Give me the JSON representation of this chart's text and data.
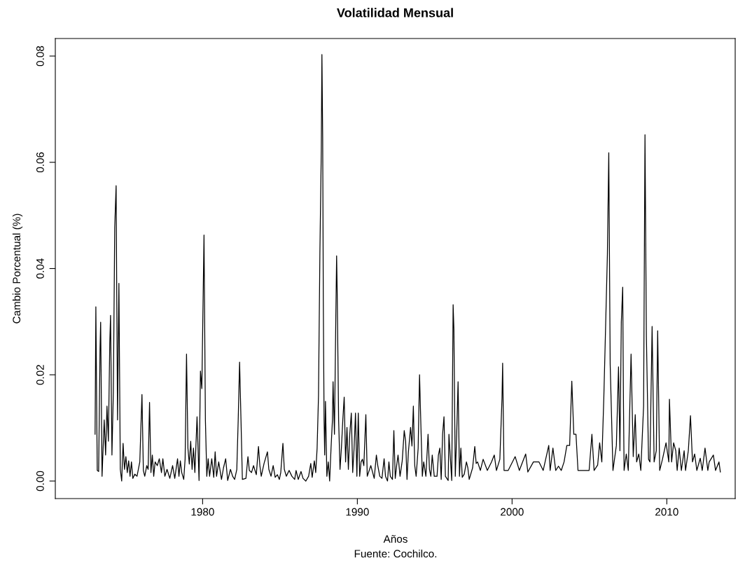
{
  "chart_data": {
    "type": "line",
    "title": "Volatilidad Mensual",
    "xlabel": "Años",
    "ylabel": "Cambio Porcentual (%)",
    "annotations": [
      "Fuente: Cochilco."
    ],
    "x": [
      1973.05,
      1973.1,
      1973.19,
      1973.28,
      1973.37,
      1973.41,
      1973.5,
      1973.64,
      1973.73,
      1973.82,
      1973.91,
      1974.0,
      1974.05,
      1974.14,
      1974.23,
      1974.32,
      1974.41,
      1974.45,
      1974.5,
      1974.59,
      1974.68,
      1974.77,
      1974.86,
      1974.95,
      1975.04,
      1975.13,
      1975.22,
      1975.31,
      1975.4,
      1975.49,
      1975.62,
      1975.76,
      1975.94,
      1976.08,
      1976.17,
      1976.26,
      1976.39,
      1976.48,
      1976.57,
      1976.66,
      1976.75,
      1976.84,
      1976.93,
      1977.07,
      1977.2,
      1977.34,
      1977.43,
      1977.56,
      1977.7,
      1977.88,
      1978.06,
      1978.2,
      1978.38,
      1978.47,
      1978.56,
      1978.65,
      1978.78,
      1978.87,
      1978.96,
      1979.05,
      1979.14,
      1979.23,
      1979.32,
      1979.41,
      1979.5,
      1979.64,
      1979.77,
      1979.86,
      1979.95,
      1980.09,
      1980.18,
      1980.27,
      1980.36,
      1980.45,
      1980.59,
      1980.72,
      1980.81,
      1980.9,
      1981.04,
      1981.22,
      1981.35,
      1981.49,
      1981.62,
      1981.8,
      1981.94,
      1982.07,
      1982.21,
      1982.3,
      1982.39,
      1982.48,
      1982.57,
      1982.8,
      1982.93,
      1983.02,
      1983.16,
      1983.29,
      1983.47,
      1983.61,
      1983.7,
      1983.79,
      1983.97,
      1984.19,
      1984.28,
      1984.42,
      1984.56,
      1984.69,
      1984.83,
      1984.96,
      1985.05,
      1985.19,
      1985.28,
      1985.41,
      1985.59,
      1985.77,
      1985.95,
      1986.04,
      1986.18,
      1986.36,
      1986.49,
      1986.67,
      1986.85,
      1986.99,
      1987.08,
      1987.22,
      1987.31,
      1987.4,
      1987.49,
      1987.58,
      1987.67,
      1987.71,
      1987.76,
      1987.8,
      1987.85,
      1987.89,
      1987.94,
      1988.03,
      1988.12,
      1988.21,
      1988.3,
      1988.39,
      1988.43,
      1988.52,
      1988.61,
      1988.66,
      1988.7,
      1988.79,
      1988.88,
      1988.97,
      1989.06,
      1989.15,
      1989.24,
      1989.33,
      1989.42,
      1989.51,
      1989.61,
      1989.7,
      1989.79,
      1989.88,
      1989.97,
      1990.06,
      1990.15,
      1990.24,
      1990.33,
      1990.42,
      1990.55,
      1990.64,
      1990.87,
      1991.09,
      1991.23,
      1991.32,
      1991.45,
      1991.59,
      1991.73,
      1991.82,
      1991.95,
      1992.04,
      1992.13,
      1992.27,
      1992.36,
      1992.45,
      1992.54,
      1992.63,
      1992.76,
      1992.9,
      1993.03,
      1993.12,
      1993.21,
      1993.3,
      1993.44,
      1993.53,
      1993.62,
      1993.71,
      1993.8,
      1993.93,
      1994.02,
      1994.11,
      1994.2,
      1994.29,
      1994.43,
      1994.57,
      1994.66,
      1994.75,
      1994.84,
      1994.97,
      1995.15,
      1995.24,
      1995.33,
      1995.42,
      1995.51,
      1995.6,
      1995.69,
      1995.87,
      1995.92,
      1996.1,
      1996.19,
      1996.24,
      1996.33,
      1996.42,
      1996.51,
      1996.6,
      1996.69,
      1996.78,
      1996.91,
      1997.05,
      1997.14,
      1997.23,
      1997.45,
      1997.59,
      1997.68,
      1997.77,
      1997.95,
      1998.13,
      1998.4,
      1998.67,
      1998.85,
      1998.99,
      1999.21,
      1999.35,
      1999.39,
      1999.48,
      1999.75,
      2000.2,
      2000.47,
      2000.88,
      2001.02,
      2001.38,
      2001.74,
      2002.01,
      2002.37,
      2002.46,
      2002.64,
      2002.82,
      2003.0,
      2003.18,
      2003.36,
      2003.54,
      2003.72,
      2003.86,
      2003.99,
      2004.13,
      2004.26,
      2004.62,
      2004.98,
      2005.16,
      2005.3,
      2005.53,
      2005.66,
      2005.8,
      2005.93,
      2006.16,
      2006.25,
      2006.34,
      2006.52,
      2006.74,
      2006.88,
      2006.97,
      2007.06,
      2007.15,
      2007.2,
      2007.24,
      2007.38,
      2007.51,
      2007.69,
      2007.83,
      2007.96,
      2008.05,
      2008.19,
      2008.32,
      2008.5,
      2008.59,
      2008.68,
      2008.82,
      2008.91,
      2009.05,
      2009.18,
      2009.32,
      2009.41,
      2009.54,
      2009.72,
      2009.95,
      2010.13,
      2010.17,
      2010.31,
      2010.44,
      2010.58,
      2010.67,
      2010.8,
      2010.94,
      2011.12,
      2011.21,
      2011.39,
      2011.53,
      2011.66,
      2011.8,
      2011.94,
      2012.16,
      2012.29,
      2012.47,
      2012.65,
      2012.74,
      2013.01,
      2013.15,
      2013.37,
      2013.46
    ],
    "series": [
      {
        "color": "#000000",
        "values": [
          0.0088,
          0.0328,
          0.002,
          0.0018,
          0.0249,
          0.0299,
          0.0009,
          0.0115,
          0.0049,
          0.0141,
          0.0075,
          0.026,
          0.0312,
          0.0049,
          0.0167,
          0.0477,
          0.0556,
          0.0352,
          0.0115,
          0.0372,
          0.0022,
          0.0,
          0.0071,
          0.0022,
          0.0046,
          0.0016,
          0.0038,
          0.0009,
          0.0036,
          0.0005,
          0.0013,
          0.0009,
          0.0036,
          0.0163,
          0.002,
          0.0009,
          0.0029,
          0.0022,
          0.0148,
          0.0016,
          0.0049,
          0.0009,
          0.0036,
          0.0029,
          0.0042,
          0.0016,
          0.0042,
          0.0009,
          0.0022,
          0.0005,
          0.0029,
          0.0005,
          0.0042,
          0.0009,
          0.0038,
          0.0016,
          0.0003,
          0.0042,
          0.0239,
          0.0062,
          0.0032,
          0.0075,
          0.0022,
          0.0062,
          0.0016,
          0.0121,
          0.0001,
          0.0207,
          0.0174,
          0.0463,
          0.0115,
          0.0009,
          0.0042,
          0.0009,
          0.0042,
          0.0007,
          0.0055,
          0.0009,
          0.0036,
          0.0003,
          0.0025,
          0.0042,
          0.0001,
          0.0022,
          0.0009,
          0.0003,
          0.0022,
          0.0115,
          0.0224,
          0.0115,
          0.0003,
          0.0005,
          0.0046,
          0.002,
          0.0016,
          0.0029,
          0.0012,
          0.0065,
          0.0029,
          0.0009,
          0.0033,
          0.0055,
          0.0022,
          0.0009,
          0.0029,
          0.0007,
          0.0012,
          0.0003,
          0.0016,
          0.0071,
          0.0022,
          0.0009,
          0.002,
          0.0009,
          0.0003,
          0.002,
          0.0003,
          0.0018,
          0.0005,
          0.0,
          0.0009,
          0.0033,
          0.0007,
          0.0038,
          0.0016,
          0.0062,
          0.0161,
          0.0431,
          0.0622,
          0.0803,
          0.0648,
          0.0339,
          0.0115,
          0.0049,
          0.015,
          0.0009,
          0.0036,
          0.0,
          0.0062,
          0.0115,
          0.0187,
          0.0088,
          0.0312,
          0.0424,
          0.0352,
          0.0115,
          0.0022,
          0.0062,
          0.0115,
          0.0158,
          0.0036,
          0.0101,
          0.0022,
          0.0088,
          0.0128,
          0.0016,
          0.0062,
          0.0128,
          0.0009,
          0.0128,
          0.0009,
          0.0036,
          0.0041,
          0.0029,
          0.0125,
          0.0009,
          0.0029,
          0.0005,
          0.0049,
          0.0029,
          0.0009,
          0.0005,
          0.0042,
          0.0009,
          0.0,
          0.0036,
          0.0009,
          0.0003,
          0.0095,
          0.0005,
          0.0029,
          0.0049,
          0.0009,
          0.0038,
          0.0095,
          0.0075,
          0.0003,
          0.0055,
          0.0101,
          0.0066,
          0.0141,
          0.0029,
          0.0009,
          0.0062,
          0.02,
          0.0101,
          0.0009,
          0.0036,
          0.0009,
          0.0088,
          0.0022,
          0.0009,
          0.0049,
          0.0009,
          0.0009,
          0.0049,
          0.0062,
          0.0003,
          0.0088,
          0.0121,
          0.0009,
          0.0001,
          0.0088,
          0.0001,
          0.0332,
          0.0286,
          0.0009,
          0.0088,
          0.0187,
          0.0009,
          0.0062,
          0.0007,
          0.0013,
          0.0036,
          0.0025,
          0.0003,
          0.0025,
          0.0065,
          0.0033,
          0.0036,
          0.002,
          0.0041,
          0.002,
          0.0036,
          0.0049,
          0.002,
          0.0041,
          0.0157,
          0.0222,
          0.002,
          0.002,
          0.0046,
          0.002,
          0.0051,
          0.0017,
          0.0036,
          0.0036,
          0.002,
          0.0067,
          0.002,
          0.0062,
          0.002,
          0.0028,
          0.002,
          0.0036,
          0.0067,
          0.0067,
          0.0188,
          0.0088,
          0.0088,
          0.002,
          0.002,
          0.002,
          0.0088,
          0.002,
          0.003,
          0.0072,
          0.0036,
          0.0157,
          0.0426,
          0.0618,
          0.022,
          0.002,
          0.0067,
          0.0215,
          0.0057,
          0.0299,
          0.0365,
          0.0141,
          0.002,
          0.0051,
          0.002,
          0.0239,
          0.0046,
          0.0125,
          0.0036,
          0.0051,
          0.002,
          0.0141,
          0.0652,
          0.0273,
          0.0041,
          0.0036,
          0.0291,
          0.0036,
          0.0057,
          0.0283,
          0.002,
          0.0041,
          0.0072,
          0.0036,
          0.0154,
          0.0036,
          0.0072,
          0.0057,
          0.002,
          0.0062,
          0.002,
          0.0057,
          0.002,
          0.0057,
          0.0123,
          0.0036,
          0.0051,
          0.002,
          0.0043,
          0.002,
          0.0062,
          0.002,
          0.0036,
          0.0049,
          0.002,
          0.0036,
          0.0017
        ]
      }
    ],
    "xlim": [
      1970.48,
      2014.42
    ],
    "ylim": [
      -0.0033,
      0.0833
    ],
    "xticks": [
      1980,
      1990,
      2000,
      2010
    ],
    "yticks": [
      {
        "value": 0,
        "label": "0.00"
      },
      {
        "value": 0.02,
        "label": "0.02"
      },
      {
        "value": 0.04,
        "label": "0.04"
      },
      {
        "value": 0.06,
        "label": "0.06"
      },
      {
        "value": 0.08,
        "label": "0.08"
      }
    ],
    "grid": false,
    "marker": "none",
    "line_style": "solid"
  }
}
